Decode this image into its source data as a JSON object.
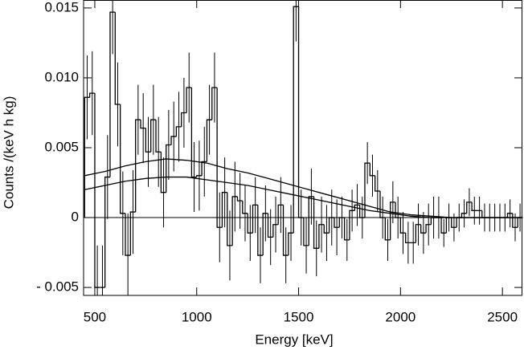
{
  "chart_data": {
    "type": "histogram",
    "xlabel": "Energy [keV]",
    "ylabel": "Counts /(keV h kg)",
    "bins": [
      450,
      475,
      500,
      525,
      550,
      575,
      600,
      625,
      650,
      675,
      700,
      725,
      750,
      775,
      800,
      825,
      850,
      875,
      900,
      925,
      950,
      975,
      1000,
      1025,
      1050,
      1075,
      1100,
      1125,
      1150,
      1175,
      1200,
      1225,
      1250,
      1275,
      1300,
      1325,
      1350,
      1375,
      1400,
      1425,
      1450,
      1475,
      1500,
      1525,
      1550,
      1575,
      1600,
      1625,
      1650,
      1675,
      1700,
      1725,
      1750,
      1775,
      1800,
      1825,
      1850,
      1875,
      1900,
      1925,
      1950,
      1975,
      2000,
      2025,
      2050,
      2075,
      2100,
      2125,
      2150,
      2175,
      2200,
      2225,
      2250,
      2275,
      2300,
      2325,
      2350,
      2375,
      2400,
      2425,
      2450,
      2475,
      2500,
      2525,
      2550,
      2575,
      2600
    ],
    "values": [
      0.0086,
      0.0089,
      -0.005,
      -0.005,
      0.0029,
      0.0147,
      0.0081,
      0.0003,
      -0.0027,
      0.0004,
      0.007,
      0.0064,
      0.0047,
      0.007,
      0.0047,
      0.0018,
      0.0052,
      0.0058,
      0.0065,
      0.0075,
      0.0093,
      0.0029,
      0.003,
      0.004,
      0.007,
      0.0093,
      -0.0007,
      0.0018,
      -0.002,
      0.0015,
      0.0012,
      0.0003,
      -0.0011,
      0.0009,
      -0.0027,
      0.0003,
      -0.0014,
      -0.0005,
      0.0009,
      -0.0027,
      -0.0011,
      0.0151,
      0,
      -0.002,
      0.0015,
      -0.0022,
      -0.0005,
      -0.0011,
      0,
      -0.0007,
      0,
      -0.0016,
      0.0005,
      0.0009,
      0,
      0.0039,
      0.003,
      0.0019,
      0,
      -0.0016,
      0.0011,
      0,
      -0.0011,
      -0.0018,
      -0.0018,
      -0.0005,
      -0.0011,
      -0.0005,
      0,
      0,
      -0.0011,
      0,
      -0.0007,
      0,
      0.0003,
      0.0011,
      0.0005,
      0.0005,
      0,
      0,
      0,
      0,
      0,
      0.0003,
      -0.0007,
      0
    ],
    "errors": [
      0.003,
      0.003,
      0.003,
      0.003,
      0.003,
      0.003,
      0.003,
      0.003,
      0.003,
      0.003,
      0.0025,
      0.0025,
      0.0025,
      0.0025,
      0.0025,
      0.0025,
      0.0025,
      0.0025,
      0.0025,
      0.0025,
      0.0025,
      0.0025,
      0.0025,
      0.0025,
      0.0025,
      0.0025,
      0.0025,
      0.0025,
      0.0025,
      0.0025,
      0.002,
      0.002,
      0.002,
      0.002,
      0.002,
      0.002,
      0.002,
      0.002,
      0.002,
      0.002,
      0.002,
      0.0025,
      0.002,
      0.002,
      0.002,
      0.002,
      0.002,
      0.002,
      0.002,
      0.002,
      0.0015,
      0.0015,
      0.0015,
      0.0015,
      0.0015,
      0.0015,
      0.0015,
      0.0015,
      0.0015,
      0.0015,
      0.0015,
      0.0015,
      0.0015,
      0.0015,
      0.0015,
      0.0015,
      0.0015,
      0.0015,
      0.0015,
      0.0015,
      0.001,
      0.001,
      0.001,
      0.001,
      0.001,
      0.001,
      0.001,
      0.001,
      0.001,
      0.001,
      0.001,
      0.001,
      0.001,
      0.001,
      0.001,
      0.001
    ],
    "color": "#000000",
    "series": [
      {
        "color": "#000000",
        "x": [
          450,
          550,
          650,
          750,
          850,
          950,
          1050,
          1150,
          1250,
          1350,
          1450,
          1550,
          1650,
          1750,
          1850,
          1950,
          2050,
          2150,
          2250,
          2350,
          2450,
          2550,
          2600
        ],
        "values": [
          0.003,
          0.0033,
          0.0037,
          0.004,
          0.0042,
          0.0041,
          0.0039,
          0.0035,
          0.0032,
          0.0028,
          0.0024,
          0.002,
          0.0016,
          0.0012,
          0.0008,
          0.0004,
          0.0002,
          0.0001,
          0,
          0,
          0,
          0,
          0
        ]
      },
      {
        "color": "#000000",
        "x": [
          450,
          550,
          650,
          750,
          850,
          950,
          1050,
          1150,
          1250,
          1350,
          1450,
          1550,
          1650,
          1750,
          1850,
          1950,
          2050,
          2150,
          2250,
          2350,
          2450,
          2550,
          2600
        ],
        "values": [
          0.002,
          0.0023,
          0.0026,
          0.0028,
          0.0029,
          0.0029,
          0.0027,
          0.0025,
          0.0023,
          0.002,
          0.0017,
          0.0014,
          0.0011,
          0.0008,
          0.0005,
          0.0003,
          0.0001,
          0,
          0,
          0,
          0,
          0,
          0
        ]
      }
    ],
    "xlim": [
      445,
      2598
    ],
    "ylim": [
      -0.00557,
      0.01557
    ],
    "xticks": [
      500,
      1000,
      1500,
      2000,
      2500
    ],
    "yticks": [
      {
        "value": -0.005,
        "label": "- 0.005"
      },
      0,
      0.005,
      {
        "value": 0.01,
        "label": "0.010"
      },
      0.015
    ]
  }
}
